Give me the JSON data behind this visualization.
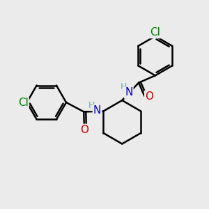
{
  "background_color": "#ebebeb",
  "bond_color": "#000000",
  "atom_colors": {
    "Cl": "#008000",
    "N": "#0000cc",
    "O": "#cc0000",
    "H": "#6aa8a8",
    "C": "#000000"
  },
  "bond_width": 1.8,
  "font_size_atoms": 11,
  "font_size_H": 9,
  "figsize": [
    3.0,
    3.0
  ],
  "dpi": 100
}
